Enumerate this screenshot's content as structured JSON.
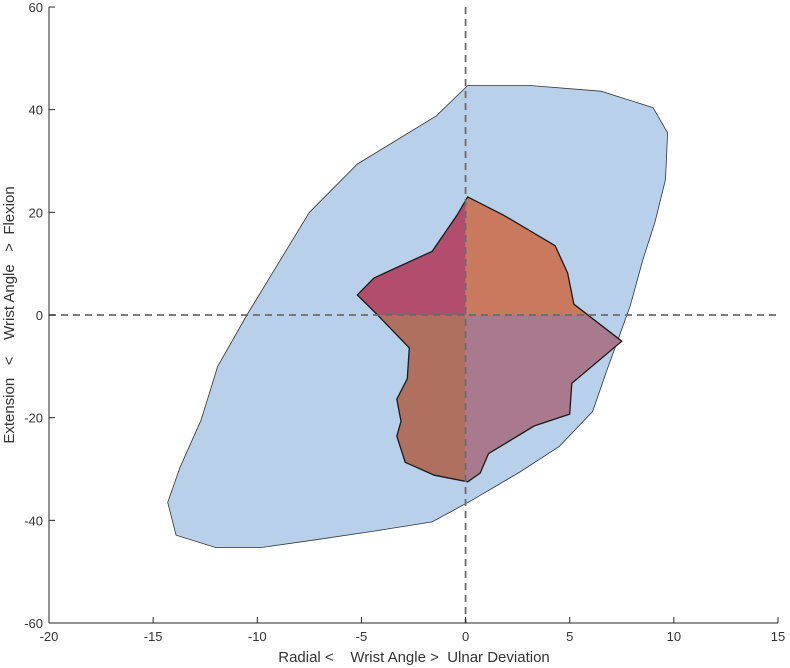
{
  "chart_data": {
    "type": "area",
    "title": "",
    "xlabel": "Radial <    Wrist Angle >  Ulnar Deviation",
    "ylabel": "Extension   <    Wrist Angle   >  Flexion",
    "xlim": [
      -20,
      15
    ],
    "ylim": [
      -60,
      60
    ],
    "xticks": [
      -20,
      -15,
      -10,
      -5,
      0,
      5,
      10,
      15
    ],
    "yticks": [
      -60,
      -40,
      -20,
      0,
      20,
      40,
      60
    ],
    "grid": false,
    "reference_lines": [
      {
        "orientation": "horizontal",
        "value": 0,
        "style": "dashed"
      },
      {
        "orientation": "vertical",
        "value": 0,
        "style": "dashed"
      }
    ],
    "colors": {
      "outer_region": "#b8d0ea",
      "quadrant_upper_left": "#b24d6e",
      "quadrant_upper_right": "#c97a5e",
      "quadrant_lower_left": "#b07060",
      "quadrant_lower_right": "#a97a8e",
      "outline": "#333333",
      "reference_line": "#6b6b6b"
    },
    "outer_region": [
      [
        0.1,
        44.7
      ],
      [
        3.1,
        44.7
      ],
      [
        6.5,
        43.6
      ],
      [
        9.0,
        40.4
      ],
      [
        9.7,
        35.5
      ],
      [
        9.6,
        26.4
      ],
      [
        9.1,
        18.2
      ],
      [
        8.5,
        10.6
      ],
      [
        7.9,
        1.7
      ],
      [
        6.8,
        -10.6
      ],
      [
        6.1,
        -18.8
      ],
      [
        4.5,
        -25.6
      ],
      [
        2.6,
        -30.6
      ],
      [
        0.3,
        -36.1
      ],
      [
        -1.6,
        -40.3
      ],
      [
        -4.4,
        -42.1
      ],
      [
        -7.2,
        -43.8
      ],
      [
        -9.8,
        -45.3
      ],
      [
        -12.0,
        -45.3
      ],
      [
        -13.9,
        -42.9
      ],
      [
        -14.3,
        -36.5
      ],
      [
        -13.7,
        -29.6
      ],
      [
        -12.7,
        -20.5
      ],
      [
        -11.9,
        -10.0
      ],
      [
        -10.5,
        0.0
      ],
      [
        -9.0,
        10.0
      ],
      [
        -7.5,
        20.0
      ],
      [
        -5.2,
        29.4
      ],
      [
        -1.4,
        38.8
      ]
    ],
    "inner_region": [
      [
        0.1,
        23.0
      ],
      [
        1.8,
        19.5
      ],
      [
        4.3,
        13.5
      ],
      [
        4.9,
        8.2
      ],
      [
        5.2,
        2.1
      ],
      [
        7.5,
        -5.1
      ],
      [
        5.1,
        -13.3
      ],
      [
        5.0,
        -19.3
      ],
      [
        3.3,
        -21.6
      ],
      [
        1.1,
        -27.0
      ],
      [
        0.7,
        -30.8
      ],
      [
        0.1,
        -32.5
      ],
      [
        -1.5,
        -31.2
      ],
      [
        -2.9,
        -28.7
      ],
      [
        -3.3,
        -23.6
      ],
      [
        -3.1,
        -20.7
      ],
      [
        -3.3,
        -16.4
      ],
      [
        -2.8,
        -12.4
      ],
      [
        -2.7,
        -6.4
      ],
      [
        -4.2,
        -0.1
      ],
      [
        -5.2,
        3.9
      ],
      [
        -4.4,
        7.2
      ],
      [
        -1.6,
        12.4
      ],
      [
        -0.4,
        19.5
      ]
    ]
  }
}
